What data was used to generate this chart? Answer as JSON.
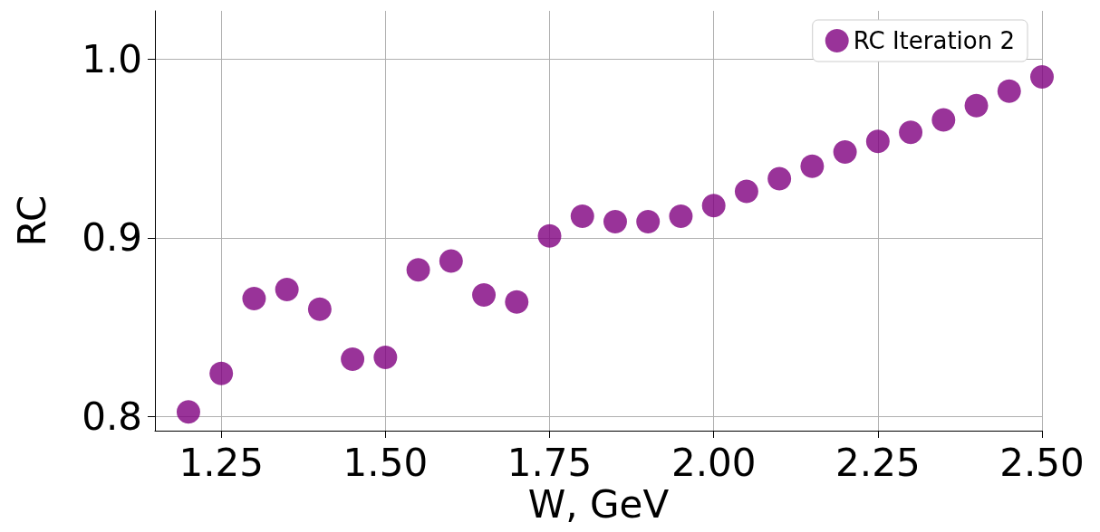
{
  "chart_data": {
    "type": "scatter",
    "xlabel": "W, GeV",
    "ylabel": "RC",
    "x": [
      1.2,
      1.25,
      1.3,
      1.35,
      1.4,
      1.45,
      1.5,
      1.55,
      1.6,
      1.65,
      1.7,
      1.75,
      1.8,
      1.85,
      1.9,
      1.95,
      2.0,
      2.05,
      2.1,
      2.15,
      2.2,
      2.25,
      2.3,
      2.35,
      2.4,
      2.45,
      2.5
    ],
    "series": [
      {
        "name": "RC Iteration 2",
        "color": "#800080",
        "values": [
          0.8025,
          0.824,
          0.866,
          0.871,
          0.86,
          0.832,
          0.833,
          0.882,
          0.887,
          0.868,
          0.864,
          0.901,
          0.912,
          0.909,
          0.909,
          0.912,
          0.918,
          0.926,
          0.933,
          0.94,
          0.948,
          0.954,
          0.959,
          0.966,
          0.974,
          0.982,
          0.99
        ]
      }
    ],
    "xlim": [
      1.149,
      2.5
    ],
    "xticks": [
      1.25,
      {
        "value": 1.5,
        "label": "1.50"
      },
      1.75,
      {
        "value": 2,
        "label": "2.00"
      },
      2.25,
      {
        "value": 2.5,
        "label": "2.50"
      }
    ],
    "ylim": [
      0.792,
      1.027
    ],
    "yticks": [
      0.8,
      0.9,
      {
        "value": 1,
        "label": "1.0"
      }
    ],
    "grid": true,
    "legend": "top right",
    "marker": "circle"
  }
}
